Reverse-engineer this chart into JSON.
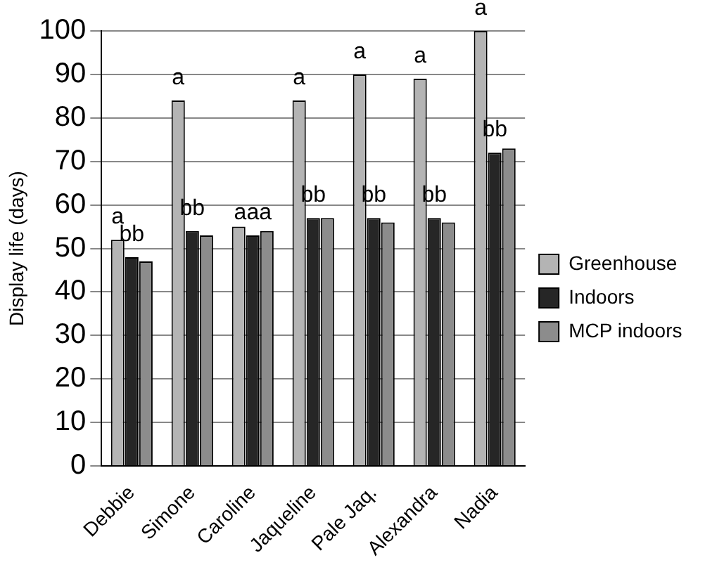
{
  "chart_data": {
    "type": "bar",
    "ylabel": "Display life (days)",
    "categories": [
      "Debbie",
      "Simone",
      "Caroline",
      "Jaqueline",
      "Pale Jaq.",
      "Alexandra",
      "Nadia"
    ],
    "series": [
      {
        "name": "Greenhouse",
        "color": "#b4b4b4",
        "values": [
          52,
          84,
          55,
          84,
          90,
          89,
          100
        ],
        "value_labels": [
          "a",
          "a",
          null,
          "a",
          "a",
          "a",
          "a"
        ]
      },
      {
        "name": "Indoors",
        "color": "#262626",
        "values": [
          48,
          54,
          53,
          57,
          57,
          57,
          72
        ],
        "value_labels": [
          "bb",
          "bb",
          "aaa",
          "bb",
          "bb",
          "bb",
          "bb"
        ]
      },
      {
        "name": "MCP indoors",
        "color": "#8c8c8c",
        "values": [
          47,
          53,
          54,
          57,
          56,
          56,
          73
        ]
      }
    ],
    "ylim": [
      0,
      100
    ],
    "yticks": [
      0,
      10,
      20,
      30,
      40,
      50,
      60,
      70,
      80,
      90,
      100
    ],
    "grid": "y",
    "legend": "right"
  }
}
